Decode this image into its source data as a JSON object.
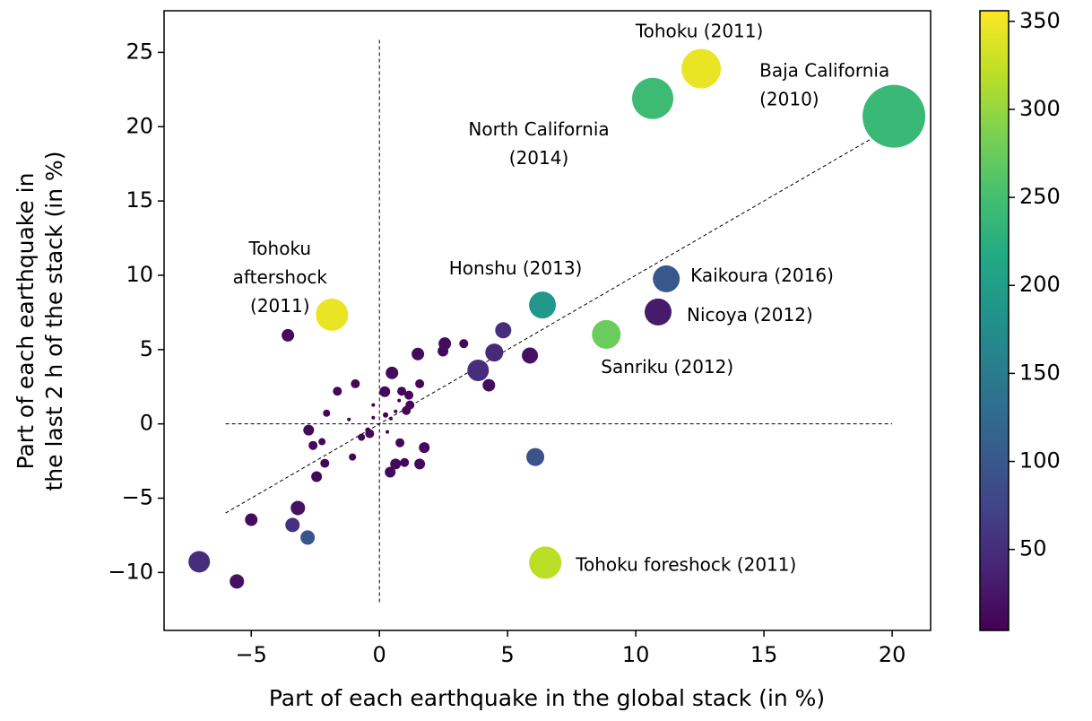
{
  "chart_data": {
    "type": "scatter",
    "xlabel": "Part of each earthquake in the global stack (in %)",
    "ylabel": [
      "Part of each earthquake in",
      "the last 2 h of the stack (in %)"
    ],
    "xlim": [
      -8.4,
      21.5
    ],
    "ylim": [
      -13.9,
      27.8
    ],
    "xticks": [
      {
        "value": -5,
        "label": "−5"
      },
      0,
      5,
      10,
      15,
      20
    ],
    "yticks": [
      {
        "value": -10,
        "label": "−10"
      },
      {
        "value": -5,
        "label": "−5"
      },
      0,
      5,
      10,
      15,
      20,
      25
    ],
    "colormap": "viridis",
    "clim": [
      4,
      356
    ],
    "colorbar_ticks": [
      50,
      100,
      150,
      200,
      250,
      300,
      350
    ],
    "reference_lines": [
      {
        "x": [
          0,
          0
        ],
        "y": [
          -12,
          26
        ]
      },
      {
        "x": [
          -6,
          20
        ],
        "y": [
          0,
          0
        ]
      },
      {
        "x": [
          -6,
          20
        ],
        "y": [
          -6,
          20
        ]
      }
    ],
    "x": [
      12.55,
      10.66,
      20.07,
      6.36,
      11.19,
      10.87,
      8.85,
      -1.85,
      6.47,
      6.08,
      -2.8,
      -3.39,
      -7.03,
      -5.56,
      -5.0,
      -3.18,
      -3.57,
      3.85,
      4.48,
      4.83,
      5.87,
      4.27,
      2.55,
      2.48,
      3.29,
      1.5,
      0.49,
      0.21,
      1.57,
      0.87,
      1.15,
      1.19,
      1.05,
      1.75,
      1.57,
      0.98,
      0.63,
      0.42,
      0.8,
      -0.94,
      -1.64,
      -2.06,
      -2.76,
      -2.59,
      -2.24,
      -2.13,
      -2.45,
      -1.05,
      -0.7,
      -0.45,
      0.24,
      0.45,
      0.63,
      0.77,
      0.31,
      -0.24,
      -1.19,
      -0.24,
      -0.38
    ],
    "y": [
      23.9,
      21.9,
      20.7,
      8.0,
      9.76,
      7.53,
      6.02,
      7.35,
      -9.34,
      -2.23,
      -7.65,
      -6.8,
      -9.28,
      -10.6,
      -6.45,
      -5.66,
      5.96,
      3.6,
      4.8,
      6.3,
      4.6,
      2.6,
      5.4,
      4.9,
      5.4,
      4.7,
      3.43,
      2.17,
      2.7,
      2.2,
      1.93,
      1.27,
      0.9,
      -1.6,
      -2.7,
      -2.6,
      -2.7,
      -3.25,
      -1.27,
      2.7,
      2.2,
      0.72,
      -0.42,
      -1.45,
      -1.2,
      -2.65,
      -3.55,
      -2.23,
      -0.9,
      -0.42,
      0.6,
      0.36,
      0.84,
      1.57,
      -0.54,
      0.42,
      0.3,
      1.27,
      -0.66
    ],
    "c": [
      345,
      243,
      240,
      190,
      100,
      30,
      275,
      345,
      320,
      92,
      98,
      55,
      50,
      20,
      15,
      20,
      15,
      50,
      45,
      50,
      20,
      15,
      15,
      12,
      10,
      15,
      15,
      12,
      10,
      10,
      10,
      10,
      10,
      12,
      12,
      10,
      12,
      12,
      10,
      10,
      10,
      8,
      12,
      10,
      8,
      10,
      12,
      8,
      8,
      6,
      6,
      5,
      5,
      5,
      5,
      5,
      5,
      5,
      10
    ],
    "sizes": [
      1936,
      2116,
      4900,
      900,
      900,
      900,
      1024,
      1296,
      1296,
      400,
      256,
      256,
      576,
      256,
      196,
      256,
      196,
      576,
      400,
      324,
      324,
      196,
      196,
      144,
      100,
      196,
      196,
      144,
      100,
      100,
      100,
      100,
      100,
      144,
      144,
      100,
      144,
      144,
      100,
      100,
      100,
      64,
      144,
      100,
      64,
      100,
      144,
      64,
      64,
      36,
      36,
      16,
      16,
      16,
      16,
      16,
      16,
      16,
      100
    ],
    "labels": [
      "Tohoku (2011)",
      "North California\n(2014)",
      "Baja California\n(2010)",
      "Honshu (2013)",
      "Kaikoura (2016)",
      "Nicoya (2012)",
      "Sanriku (2012)",
      "Tohoku\naftershock\n(2011)",
      "Tohoku foreshock (2011)",
      null,
      null,
      null,
      null,
      null,
      null,
      null,
      null,
      null,
      null,
      null,
      null,
      null,
      null,
      null,
      null,
      null,
      null,
      null,
      null,
      null,
      null,
      null,
      null,
      null,
      null,
      null,
      null,
      null,
      null,
      null,
      null,
      null,
      null,
      null,
      null,
      null,
      null,
      null,
      null,
      null,
      null,
      null,
      null,
      null,
      null,
      null,
      null,
      null,
      null
    ]
  }
}
